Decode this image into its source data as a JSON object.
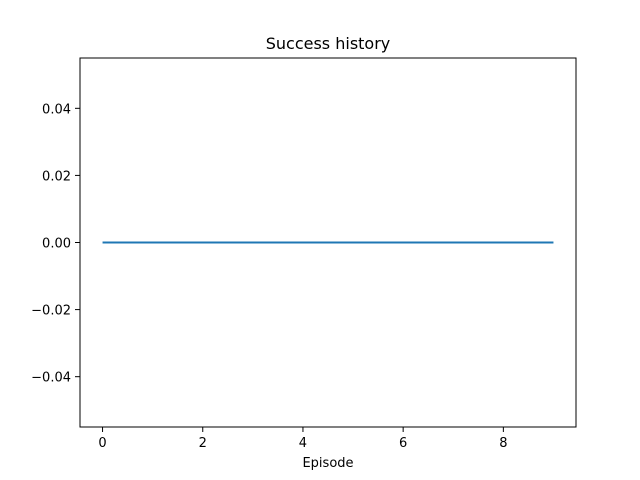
{
  "chart_data": {
    "type": "line",
    "title": "Success history",
    "xlabel": "Episode",
    "ylabel": "",
    "xlim": [
      -0.45,
      9.45
    ],
    "ylim": [
      -0.055,
      0.055
    ],
    "x_ticks": [
      0,
      2,
      4,
      6,
      8
    ],
    "x_tick_labels": [
      "0",
      "2",
      "4",
      "6",
      "8"
    ],
    "y_ticks": [
      -0.04,
      -0.02,
      0.0,
      0.02,
      0.04
    ],
    "y_tick_labels": [
      "−0.04",
      "−0.02",
      "0.00",
      "0.02",
      "0.04"
    ],
    "grid": false,
    "series": [
      {
        "color": "#1f77b4",
        "x": [
          0,
          1,
          2,
          3,
          4,
          5,
          6,
          7,
          8,
          9
        ],
        "y": [
          0,
          0,
          0,
          0,
          0,
          0,
          0,
          0,
          0,
          0
        ]
      }
    ]
  }
}
